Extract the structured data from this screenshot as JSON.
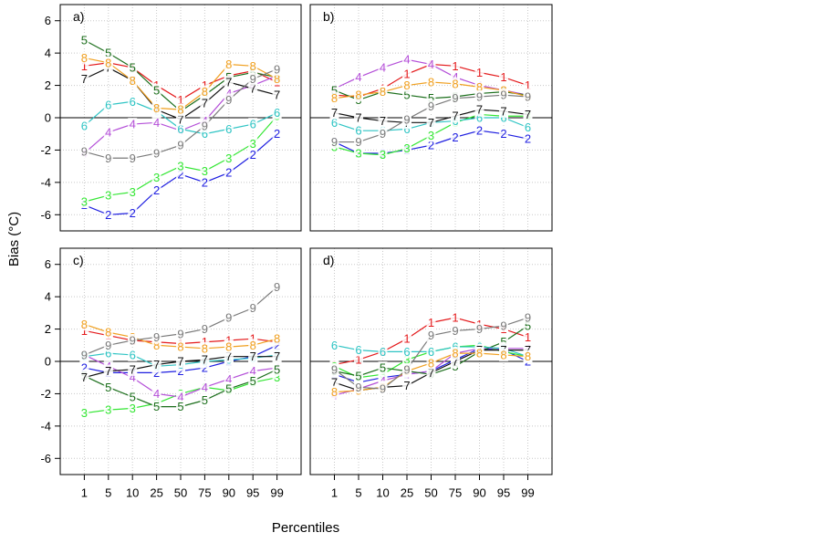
{
  "x_label": "Percentiles",
  "y_label": "Bias (°C)",
  "chart_data": [
    {
      "type": "line",
      "title": "a)",
      "ylim": [
        -7,
        7
      ],
      "yticks": [
        -6,
        -4,
        -2,
        0,
        2,
        4,
        6
      ],
      "grid": true,
      "series": [
        {
          "name": "1",
          "color": "#e41a1c",
          "values": [
            3.2,
            3.4,
            3.1,
            2.0,
            1.1,
            2.0,
            2.6,
            2.9,
            2.2
          ]
        },
        {
          "name": "2",
          "color": "#1f1fe0",
          "values": [
            -5.4,
            -6.0,
            -5.9,
            -4.5,
            -3.5,
            -4.0,
            -3.4,
            -2.3,
            -1.0
          ]
        },
        {
          "name": "3",
          "color": "#33e633",
          "values": [
            -5.2,
            -4.8,
            -4.6,
            -3.7,
            -3.0,
            -3.3,
            -2.5,
            -1.6,
            0.1
          ]
        },
        {
          "name": "4",
          "color": "#b44fd8",
          "values": [
            -2.2,
            -0.9,
            -0.4,
            -0.3,
            -0.8,
            -0.2,
            1.5,
            2.0,
            2.6
          ]
        },
        {
          "name": "5",
          "color": "#1b6e1b",
          "values": [
            4.8,
            4.0,
            3.1,
            1.7,
            0.4,
            1.4,
            2.5,
            2.8,
            2.5
          ]
        },
        {
          "name": "6",
          "color": "#2ec4c4",
          "values": [
            -0.5,
            0.8,
            1.0,
            0.4,
            -0.7,
            -1.0,
            -0.7,
            -0.4,
            0.3
          ]
        },
        {
          "name": "7",
          "color": "#111111",
          "values": [
            2.4,
            3.1,
            2.3,
            0.5,
            -0.1,
            0.9,
            2.2,
            1.8,
            1.4
          ]
        },
        {
          "name": "8",
          "color": "#f0a020",
          "values": [
            3.7,
            3.4,
            2.3,
            0.6,
            0.5,
            1.6,
            3.3,
            3.2,
            2.4
          ]
        },
        {
          "name": "9",
          "color": "#7a7a7a",
          "values": [
            -2.1,
            -2.5,
            -2.5,
            -2.2,
            -1.7,
            -0.5,
            1.1,
            2.4,
            3.0
          ]
        }
      ]
    },
    {
      "type": "line",
      "title": "b)",
      "ylim": [
        -7,
        7
      ],
      "yticks": [
        -6,
        -4,
        -2,
        0,
        2,
        4,
        6
      ],
      "grid": true,
      "series": [
        {
          "name": "1",
          "color": "#e41a1c",
          "values": [
            1.4,
            1.3,
            1.8,
            2.7,
            3.3,
            3.2,
            2.8,
            2.5,
            2.0
          ]
        },
        {
          "name": "2",
          "color": "#1f1fe0",
          "values": [
            -1.5,
            -2.2,
            -2.2,
            -2.0,
            -1.7,
            -1.2,
            -0.8,
            -1.0,
            -1.3
          ]
        },
        {
          "name": "3",
          "color": "#33e633",
          "values": [
            -1.8,
            -2.2,
            -2.3,
            -1.9,
            -1.1,
            -0.3,
            0.2,
            0.1,
            0.1
          ]
        },
        {
          "name": "4",
          "color": "#b44fd8",
          "values": [
            1.8,
            2.5,
            3.1,
            3.6,
            3.3,
            2.5,
            2.0,
            1.7,
            1.4
          ]
        },
        {
          "name": "5",
          "color": "#1b6e1b",
          "values": [
            1.7,
            1.1,
            1.6,
            1.4,
            1.2,
            1.3,
            1.5,
            1.6,
            1.4
          ]
        },
        {
          "name": "6",
          "color": "#2ec4c4",
          "values": [
            -0.3,
            -0.8,
            -0.8,
            -0.7,
            -0.3,
            -0.2,
            0.0,
            0.0,
            -0.6
          ]
        },
        {
          "name": "7",
          "color": "#111111",
          "values": [
            0.3,
            0.0,
            -0.2,
            -0.3,
            -0.3,
            0.1,
            0.5,
            0.4,
            0.2
          ]
        },
        {
          "name": "8",
          "color": "#f0a020",
          "values": [
            1.2,
            1.4,
            1.6,
            2.0,
            2.2,
            2.1,
            1.9,
            1.7,
            1.3
          ]
        },
        {
          "name": "9",
          "color": "#7a7a7a",
          "values": [
            -1.5,
            -1.5,
            -1.0,
            -0.1,
            0.7,
            1.2,
            1.3,
            1.4,
            1.3
          ]
        }
      ]
    },
    {
      "type": "line",
      "title": "c)",
      "categories": [
        "1",
        "5",
        "10",
        "25",
        "50",
        "75",
        "90",
        "95",
        "99"
      ],
      "ylim": [
        -7,
        7
      ],
      "yticks": [
        -6,
        -4,
        -2,
        0,
        2,
        4,
        6
      ],
      "grid": true,
      "series": [
        {
          "name": "1",
          "color": "#e41a1c",
          "values": [
            1.9,
            1.6,
            1.3,
            1.2,
            1.1,
            1.2,
            1.3,
            1.4,
            1.2
          ]
        },
        {
          "name": "2",
          "color": "#1f1fe0",
          "values": [
            -0.4,
            -0.7,
            -0.7,
            -0.7,
            -0.6,
            -0.4,
            0.0,
            0.3,
            1.0
          ]
        },
        {
          "name": "3",
          "color": "#33e633",
          "values": [
            -3.2,
            -3.0,
            -2.9,
            -2.6,
            -2.0,
            -1.6,
            -1.8,
            -1.3,
            -1.0
          ]
        },
        {
          "name": "4",
          "color": "#b44fd8",
          "values": [
            0.4,
            -0.3,
            -1.0,
            -2.0,
            -2.2,
            -1.6,
            -1.1,
            -0.6,
            -0.4
          ]
        },
        {
          "name": "5",
          "color": "#1b6e1b",
          "values": [
            -0.9,
            -1.6,
            -2.2,
            -2.8,
            -2.8,
            -2.4,
            -1.7,
            -1.2,
            -0.5
          ]
        },
        {
          "name": "6",
          "color": "#2ec4c4",
          "values": [
            0.3,
            0.5,
            0.4,
            -0.3,
            -0.2,
            0.0,
            0.1,
            0.2,
            0.4
          ]
        },
        {
          "name": "7",
          "color": "#111111",
          "values": [
            -1.0,
            -0.6,
            -0.5,
            -0.2,
            0.0,
            0.1,
            0.3,
            0.3,
            0.3
          ]
        },
        {
          "name": "8",
          "color": "#f0a020",
          "values": [
            2.3,
            1.8,
            1.5,
            1.0,
            0.9,
            0.8,
            0.9,
            1.0,
            1.4
          ]
        },
        {
          "name": "9",
          "color": "#7a7a7a",
          "values": [
            0.4,
            1.0,
            1.3,
            1.5,
            1.7,
            2.0,
            2.7,
            3.3,
            4.6
          ]
        }
      ]
    },
    {
      "type": "line",
      "title": "d)",
      "categories": [
        "1",
        "5",
        "10",
        "25",
        "50",
        "75",
        "90",
        "95",
        "99"
      ],
      "ylim": [
        -7,
        7
      ],
      "yticks": [
        -6,
        -4,
        -2,
        0,
        2,
        4,
        6
      ],
      "grid": true,
      "series": [
        {
          "name": "1",
          "color": "#e41a1c",
          "values": [
            -0.2,
            0.1,
            0.6,
            1.4,
            2.4,
            2.7,
            2.3,
            2.0,
            1.5
          ]
        },
        {
          "name": "2",
          "color": "#1f1fe0",
          "values": [
            -0.8,
            -1.3,
            -1.0,
            -0.8,
            -0.6,
            0.1,
            0.8,
            0.7,
            0.0
          ]
        },
        {
          "name": "3",
          "color": "#33e633",
          "values": [
            -0.3,
            -1.0,
            -0.8,
            0.1,
            0.6,
            0.9,
            1.0,
            0.6,
            0.3
          ]
        },
        {
          "name": "4",
          "color": "#b44fd8",
          "values": [
            -2.1,
            -1.7,
            -1.2,
            -0.8,
            -0.6,
            0.5,
            0.8,
            0.8,
            0.8
          ]
        },
        {
          "name": "5",
          "color": "#1b6e1b",
          "values": [
            -0.6,
            -0.9,
            -0.4,
            -0.6,
            -0.8,
            -0.3,
            0.6,
            1.2,
            2.2
          ]
        },
        {
          "name": "6",
          "color": "#2ec4c4",
          "values": [
            1.0,
            0.7,
            0.6,
            0.6,
            0.6,
            0.9,
            0.9,
            0.8,
            0.3
          ]
        },
        {
          "name": "7",
          "color": "#111111",
          "values": [
            -1.3,
            -1.8,
            -1.6,
            -1.5,
            -0.7,
            0.0,
            0.7,
            0.7,
            0.7
          ]
        },
        {
          "name": "8",
          "color": "#f0a020",
          "values": [
            -1.9,
            -1.8,
            -1.6,
            -0.6,
            -0.1,
            0.5,
            0.5,
            0.4,
            0.3
          ]
        },
        {
          "name": "9",
          "color": "#7a7a7a",
          "values": [
            -0.5,
            -1.6,
            -1.7,
            -0.5,
            1.6,
            1.9,
            2.0,
            2.2,
            2.7
          ]
        }
      ]
    }
  ]
}
